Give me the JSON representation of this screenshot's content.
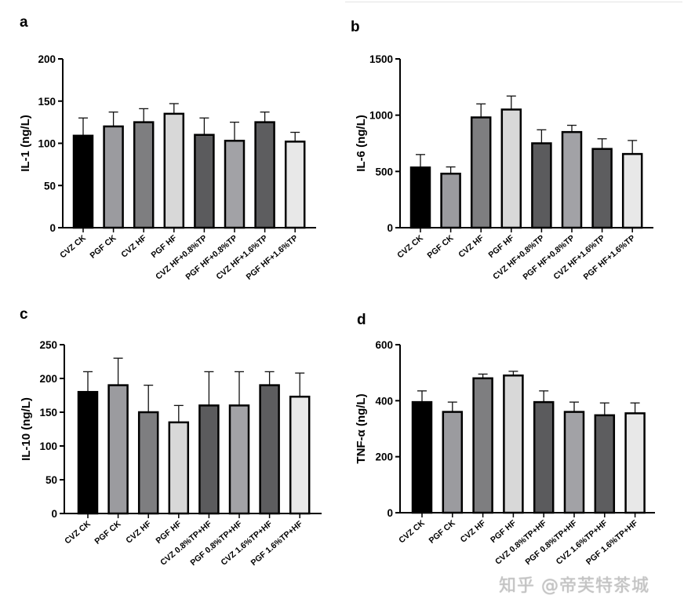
{
  "colors": [
    "#000000",
    "#9b9b9f",
    "#7e7e80",
    "#d8d8d8",
    "#5b5b5d",
    "#a2a2a6",
    "#5d5d5f",
    "#e8e8e8"
  ],
  "watermark": "知乎 @帝芙特茶城",
  "chart_data": [
    {
      "panel": "a",
      "type": "bar",
      "ylabel": "IL-1 (ng/L)",
      "ylim": [
        0,
        200
      ],
      "yticks": [
        0,
        50,
        100,
        150,
        200
      ],
      "categories": [
        "CVZ CK",
        "PGF CK",
        "CVZ HF",
        "PGF HF",
        "CVZ HF+0.8%TP",
        "PGF HF+0.8%TP",
        "CVZ HF+1.6%TP",
        "PGF HF+1.6%TP"
      ],
      "values": [
        109,
        120,
        125,
        135,
        110,
        103,
        125,
        102
      ],
      "error_upper": [
        130,
        137,
        141,
        147,
        130,
        125,
        137,
        113
      ]
    },
    {
      "panel": "b",
      "type": "bar",
      "ylabel": "IL-6 (ng/L)",
      "ylim": [
        0,
        1500
      ],
      "yticks": [
        0,
        500,
        1000,
        1500
      ],
      "categories": [
        "CVZ CK",
        "PGF CK",
        "CVZ HF",
        "PGF HF",
        "CVZ HF+0.8%TP",
        "PGF HF+0.8%TP",
        "CVZ HF+1.6%TP",
        "PGF HF+1.6%TP"
      ],
      "values": [
        535,
        480,
        980,
        1050,
        750,
        850,
        700,
        655
      ],
      "error_upper": [
        650,
        540,
        1100,
        1170,
        870,
        910,
        790,
        775
      ]
    },
    {
      "panel": "c",
      "type": "bar",
      "ylabel": "IL-10 (ng/L)",
      "ylim": [
        0,
        250
      ],
      "yticks": [
        0,
        50,
        100,
        150,
        200,
        250
      ],
      "categories": [
        "CVZ CK",
        "PGF CK",
        "CVZ HF",
        "PGF HF",
        "CVZ 0.8%TP+HF",
        "PGF 0.8%TP+HF",
        "CVZ 1.6%TP+HF",
        "PGF 1.6%TP+HF"
      ],
      "values": [
        180,
        190,
        150,
        135,
        160,
        160,
        190,
        173
      ],
      "error_upper": [
        210,
        230,
        190,
        160,
        210,
        210,
        210,
        208
      ]
    },
    {
      "panel": "d",
      "type": "bar",
      "ylabel": "TNF-α (ng/L)",
      "ylim": [
        0,
        600
      ],
      "yticks": [
        0,
        200,
        400,
        600
      ],
      "categories": [
        "CVZ CK",
        "PGF CK",
        "CVZ HF",
        "PGF HF",
        "CVZ 0.8%TP+HF",
        "PGF 0.8%TP+HF",
        "CVZ 1.6%TP+HF",
        "PGF 1.6%TP+HF"
      ],
      "values": [
        395,
        360,
        480,
        490,
        395,
        360,
        348,
        355
      ],
      "error_upper": [
        435,
        395,
        495,
        505,
        435,
        395,
        392,
        392
      ]
    }
  ]
}
